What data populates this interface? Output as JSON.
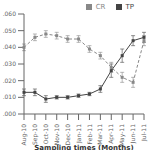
{
  "chart_data": {
    "type": "line",
    "xlabel": "Sampling times (Months)",
    "categories": [
      "Aug-10",
      "Sep-10",
      "Oct-10",
      "Nov-10",
      "Dec-10",
      "Jan-11",
      "Feb-11",
      "Mar-11",
      "Apr-11",
      "May-11",
      "Jun-11",
      "Jul-11"
    ],
    "series": [
      {
        "name": "TP",
        "color": "#444444",
        "marker": "square",
        "line_style": "solid",
        "values": [
          0.013,
          0.013,
          0.009,
          0.01,
          0.01,
          0.011,
          0.012,
          0.015,
          0.026,
          0.035,
          0.044,
          0.046
        ],
        "errors": [
          0.002,
          0.002,
          0.002,
          0.001,
          0.001,
          0.001,
          0.001,
          0.002,
          0.004,
          0.004,
          0.003,
          0.003
        ]
      },
      {
        "name": "CR",
        "color": "#888888",
        "marker": "square",
        "line_style": "dashed",
        "values": [
          0.04,
          0.046,
          0.048,
          0.047,
          0.045,
          0.045,
          0.039,
          0.035,
          0.028,
          0.022,
          0.019,
          0.044
        ],
        "errors": [
          0.002,
          0.002,
          0.002,
          0.002,
          0.002,
          0.002,
          0.002,
          0.002,
          0.003,
          0.003,
          0.003,
          0.003
        ]
      }
    ],
    "ylim": [
      0.0,
      0.06
    ],
    "yticks": [
      {
        "value": 0.0,
        "label": ".000"
      },
      {
        "value": 0.01,
        "label": ".010"
      },
      {
        "value": 0.02,
        "label": ".020"
      },
      {
        "value": 0.03,
        "label": ".030"
      },
      {
        "value": 0.04,
        "label": ".040"
      },
      {
        "value": 0.05,
        "label": ".050"
      },
      {
        "value": 0.06,
        "label": ".060"
      }
    ],
    "legend": "upper right",
    "grid": false
  }
}
